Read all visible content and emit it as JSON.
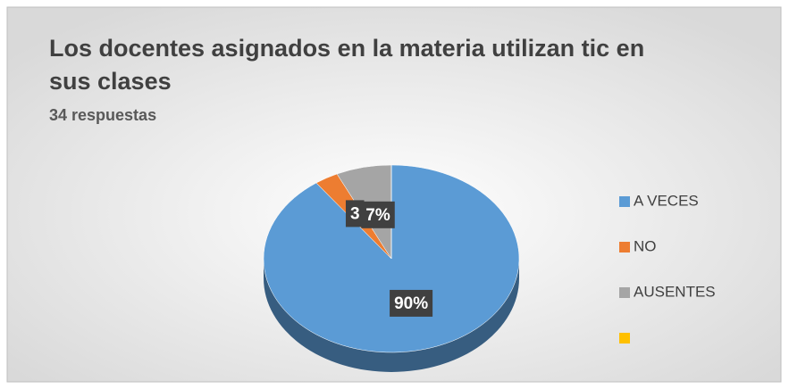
{
  "chart_data": {
    "type": "pie",
    "title_lines": [
      "Los docentes asignados en la materia utilizan tic en",
      "sus clases"
    ],
    "subtitle": "34 respuestas",
    "categories": [
      "A VECES",
      "NO",
      "AUSENTES",
      null
    ],
    "values": [
      90,
      3,
      7,
      0
    ],
    "value_labels": [
      "90%",
      "3",
      "7%",
      null
    ],
    "colors": [
      "#5b9bd5",
      "#ed7d31",
      "#a5a5a5",
      "#ffc000"
    ],
    "legend": "right"
  }
}
